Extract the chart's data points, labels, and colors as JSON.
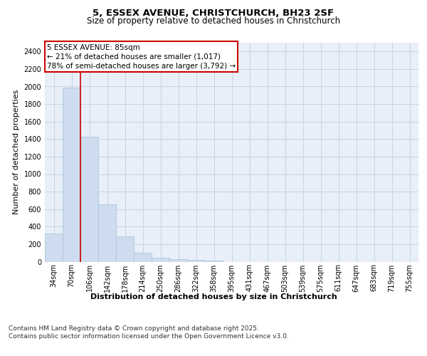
{
  "title_line1": "5, ESSEX AVENUE, CHRISTCHURCH, BH23 2SF",
  "title_line2": "Size of property relative to detached houses in Christchurch",
  "xlabel": "Distribution of detached houses by size in Christchurch",
  "ylabel": "Number of detached properties",
  "categories": [
    "34sqm",
    "70sqm",
    "106sqm",
    "142sqm",
    "178sqm",
    "214sqm",
    "250sqm",
    "286sqm",
    "322sqm",
    "358sqm",
    "395sqm",
    "431sqm",
    "467sqm",
    "503sqm",
    "539sqm",
    "575sqm",
    "611sqm",
    "647sqm",
    "683sqm",
    "719sqm",
    "755sqm"
  ],
  "values": [
    325,
    1990,
    1425,
    655,
    285,
    105,
    42,
    28,
    20,
    13,
    0,
    0,
    0,
    0,
    0,
    0,
    0,
    0,
    0,
    0,
    0
  ],
  "bar_color": "#cddcee",
  "bar_edge_color": "#a8c0d8",
  "line_x_index": 1,
  "line_color": "#cc0000",
  "annotation_text": "5 ESSEX AVENUE: 85sqm\n← 21% of detached houses are smaller (1,017)\n78% of semi-detached houses are larger (3,792) →",
  "annotation_box_color": "#ffffff",
  "annotation_box_edge": "#cc0000",
  "ylim": [
    0,
    2500
  ],
  "yticks": [
    0,
    200,
    400,
    600,
    800,
    1000,
    1200,
    1400,
    1600,
    1800,
    2000,
    2200,
    2400
  ],
  "grid_color": "#c0cfe0",
  "bg_color": "#e8eff8",
  "footnote": "Contains HM Land Registry data © Crown copyright and database right 2025.\nContains public sector information licensed under the Open Government Licence v3.0.",
  "title_fontsize": 9.5,
  "subtitle_fontsize": 8.5,
  "axis_label_fontsize": 8,
  "tick_fontsize": 7,
  "annotation_fontsize": 7.5,
  "footnote_fontsize": 6.5
}
